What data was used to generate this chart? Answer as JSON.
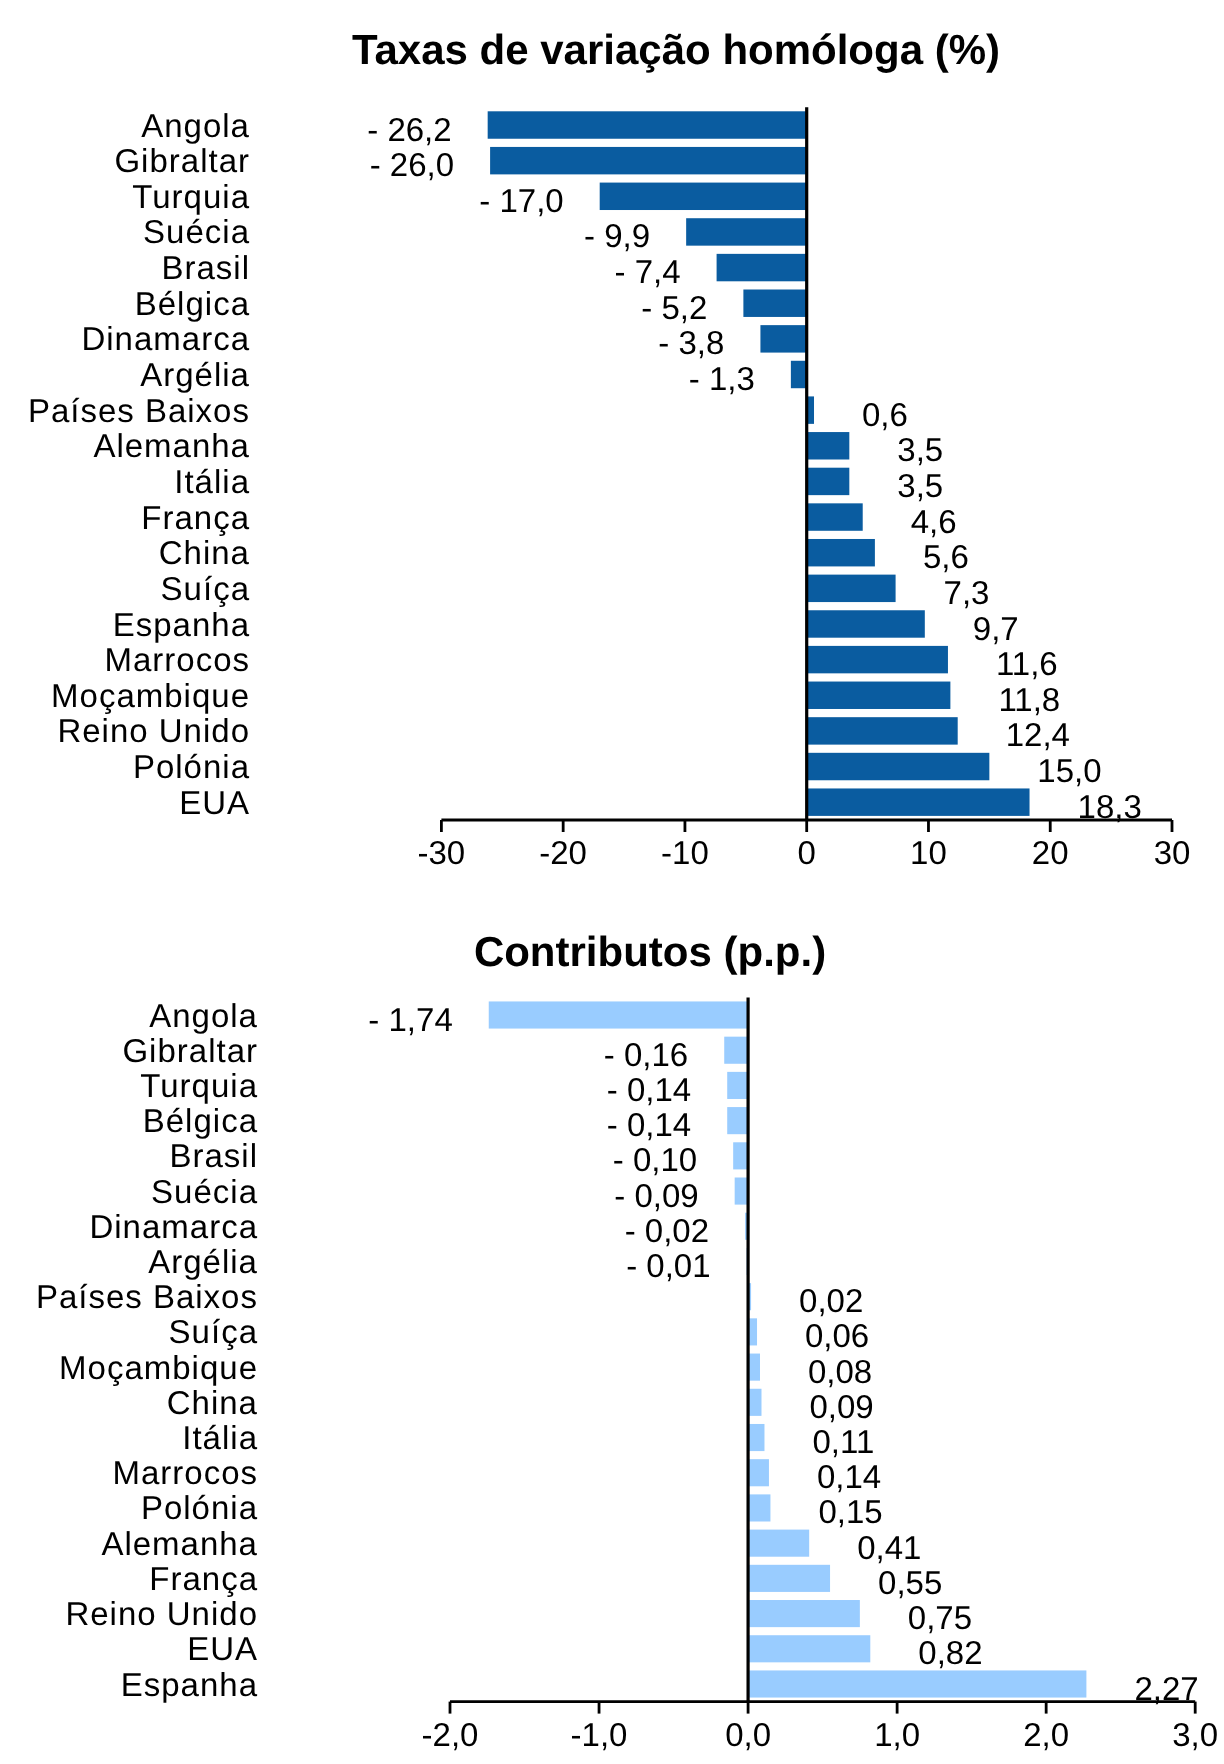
{
  "chart_data": [
    {
      "type": "bar",
      "orientation": "horizontal",
      "title": "Taxas de variação homóloga (%)",
      "categories": [
        "Angola",
        "Gibraltar",
        "Turquia",
        "Suécia",
        "Brasil",
        "Bélgica",
        "Dinamarca",
        "Argélia",
        "Países Baixos",
        "Alemanha",
        "Itália",
        "França",
        "China",
        "Suíça",
        "Espanha",
        "Marrocos",
        "Moçambique",
        "Reino Unido",
        "Polónia",
        "EUA"
      ],
      "values": [
        -26.2,
        -26.0,
        -17.0,
        -9.9,
        -7.4,
        -5.2,
        -3.8,
        -1.3,
        0.6,
        3.5,
        3.5,
        4.6,
        5.6,
        7.3,
        9.7,
        11.6,
        11.8,
        12.4,
        15.0,
        18.3
      ],
      "value_labels": [
        "- 26,2",
        "- 26,0",
        "- 17,0",
        "- 9,9",
        "- 7,4",
        "- 5,2",
        "- 3,8",
        "- 1,3",
        "0,6",
        "3,5",
        "3,5",
        "4,6",
        "5,6",
        "7,3",
        "9,7",
        "11,6",
        "11,8",
        "12,4",
        "15,0",
        "18,3"
      ],
      "color": "#0a5ca0",
      "xlim": [
        -30,
        30
      ],
      "xticks": [
        -30,
        -20,
        -10,
        0,
        10,
        20,
        30
      ]
    },
    {
      "type": "bar",
      "orientation": "horizontal",
      "title": "Contributos (p.p.)",
      "categories": [
        "Angola",
        "Gibraltar",
        "Turquia",
        "Bélgica",
        "Brasil",
        "Suécia",
        "Dinamarca",
        "Argélia",
        "Países Baixos",
        "Suíça",
        "Moçambique",
        "China",
        "Itália",
        "Marrocos",
        "Polónia",
        "Alemanha",
        "França",
        "Reino Unido",
        "EUA",
        "Espanha"
      ],
      "values": [
        -1.74,
        -0.16,
        -0.14,
        -0.14,
        -0.1,
        -0.09,
        -0.02,
        -0.01,
        0.02,
        0.06,
        0.08,
        0.09,
        0.11,
        0.14,
        0.15,
        0.41,
        0.55,
        0.75,
        0.82,
        2.27
      ],
      "value_labels": [
        "- 1,74",
        "- 0,16",
        "- 0,14",
        "- 0,14",
        "- 0,10",
        "- 0,09",
        "- 0,02",
        "- 0,01",
        "0,02",
        "0,06",
        "0,08",
        "0,09",
        "0,11",
        "0,14",
        "0,15",
        "0,41",
        "0,55",
        "0,75",
        "0,82",
        "2,27"
      ],
      "color": "#99ccff",
      "xlim": [
        -2,
        3
      ],
      "xticks": [
        {
          "value": -2,
          "label": "-2,0"
        },
        {
          "value": -1,
          "label": "-1,0"
        },
        {
          "value": 0,
          "label": "0,0"
        },
        {
          "value": 1,
          "label": "1,0"
        },
        {
          "value": 2,
          "label": "2,0"
        },
        {
          "value": 3,
          "label": "3,0"
        }
      ]
    }
  ]
}
